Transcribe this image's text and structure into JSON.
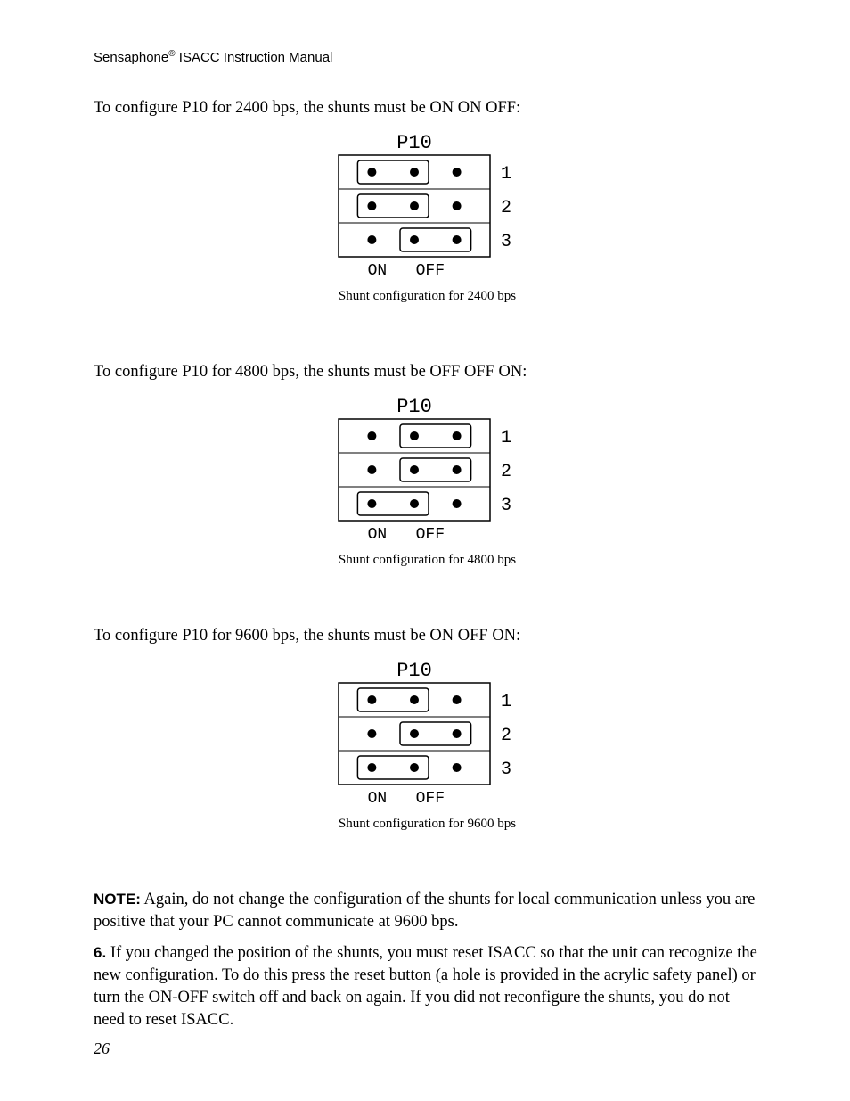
{
  "header": {
    "brand": "Sensaphone",
    "registered": "®",
    "rest": " ISACC Instruction Manual"
  },
  "intro": {
    "p1": "To configure P10 for 2400 bps, the shunts must be ON ON OFF:",
    "p2": "To configure P10 for 4800 bps, the shunts must be OFF OFF ON:",
    "p3": "To configure P10 for 9600 bps, the shunts must be ON OFF ON:"
  },
  "diagrams": {
    "d1": {
      "title": "P10",
      "on": "ON",
      "off": "OFF",
      "rows": [
        "1",
        "2",
        "3"
      ],
      "shunts": [
        "on",
        "on",
        "off"
      ],
      "caption": "Shunt configuration for 2400 bps"
    },
    "d2": {
      "title": "P10",
      "on": "ON",
      "off": "OFF",
      "rows": [
        "1",
        "2",
        "3"
      ],
      "shunts": [
        "off",
        "off",
        "on"
      ],
      "caption": "Shunt configuration for 4800 bps"
    },
    "d3": {
      "title": "P10",
      "on": "ON",
      "off": "OFF",
      "rows": [
        "1",
        "2",
        "3"
      ],
      "shunts": [
        "on",
        "off",
        "on"
      ],
      "caption": "Shunt configuration for 9600 bps"
    }
  },
  "note": {
    "label": "NOTE:",
    "text": "  Again, do not change the configuration of the shunts for local communication unless you are positive that your PC cannot communicate at 9600 bps."
  },
  "step6": {
    "num": "6.",
    "text": "  If you changed the position of the shunts, you must reset ISACC so that the unit can recognize the new configuration.  To do this press the reset button (a hole is provided in the acrylic safety panel) or turn the ON-OFF switch off and back on again.  If you did not reconfigure the shunts, you do not need to reset ISACC."
  },
  "pageNumber": "26",
  "style": {
    "stroke": "#000000",
    "dotFill": "#000000",
    "mono": "Courier, 'Courier New', monospace"
  }
}
